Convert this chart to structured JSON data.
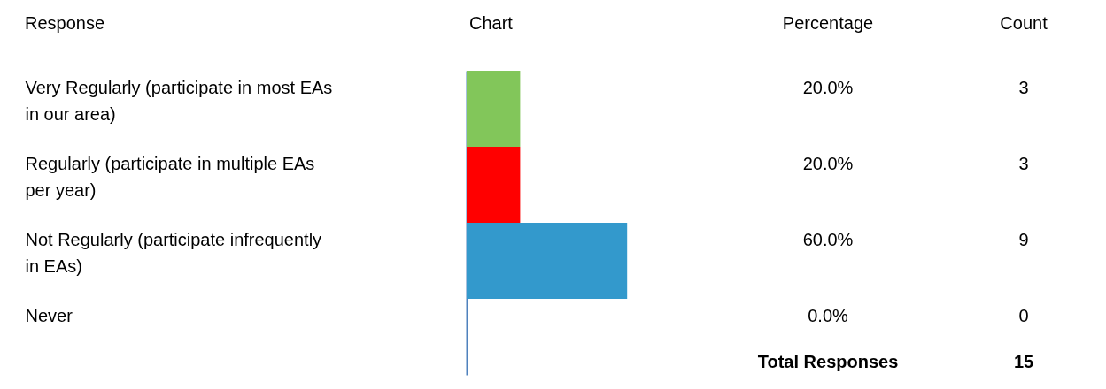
{
  "chart_data": {
    "type": "bar",
    "orientation": "horizontal",
    "xlabel": "Chart",
    "ylabel": "Response",
    "categories": [
      "Very Regularly (participate in most EAs in our area)",
      "Regularly (participate in multiple EAs per year)",
      "Not Regularly (participate infrequently in EAs)",
      "Never"
    ],
    "values": [
      20,
      20,
      60,
      0
    ],
    "colors": [
      "#82c65a",
      "#ff0000",
      "#3399cc",
      "#4f81bd"
    ],
    "value_labels": [
      "20.0%",
      "20.0%",
      "60.0%",
      "0.0%"
    ],
    "tick_labels": "y",
    "annotations": [
      "Percentage",
      "Count",
      "3",
      "3",
      "9",
      "0",
      "Total Responses",
      "15"
    ]
  }
}
